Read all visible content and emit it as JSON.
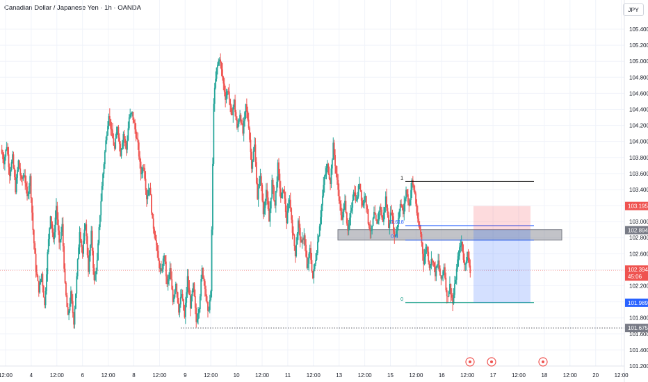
{
  "header": {
    "symbol_title": "Canadian Dollar / Japanese Yen · 1h · OANDA",
    "currency_button": "JPY"
  },
  "colors": {
    "up": "#26a69a",
    "down": "#ef5350",
    "grid": "#f0f3fa",
    "axis_text": "#131722"
  },
  "chart_data": {
    "type": "candlestick",
    "ylim": [
      101.2,
      105.5
    ],
    "y_ticks": [
      101.2,
      101.4,
      101.6,
      101.8,
      102.0,
      102.2,
      102.4,
      102.6,
      102.8,
      103.0,
      103.2,
      103.4,
      103.6,
      103.8,
      104.0,
      104.2,
      104.4,
      104.6,
      104.8,
      105.0,
      105.2,
      105.4
    ],
    "y_tick_labels": [
      "101.200",
      "101.400",
      "101.600",
      "101.800",
      "102.000",
      "102.200",
      "102.400",
      "102.600",
      "102.800",
      "103.000",
      "103.200",
      "103.400",
      "103.600",
      "103.800",
      "104.000",
      "104.200",
      "104.400",
      "104.600",
      "104.800",
      "105.000",
      "105.200",
      "105.400"
    ],
    "x_tick_labels": [
      "12:00",
      "4",
      "12:00",
      "6",
      "12:00",
      "8",
      "12:00",
      "9",
      "12:00",
      "10",
      "12:00",
      "11",
      "12:00",
      "13",
      "12:00",
      "15",
      "12:00",
      "16",
      "12:00",
      "17",
      "12:00",
      "18",
      "12:00",
      "20",
      "12:00"
    ],
    "price_path": [
      103.9,
      103.75,
      103.95,
      103.6,
      103.8,
      103.4,
      103.75,
      103.5,
      103.6,
      103.3,
      103.55,
      102.9,
      102.4,
      102.15,
      102.35,
      101.95,
      102.6,
      103.1,
      102.75,
      103.2,
      102.7,
      102.95,
      102.2,
      101.8,
      102.1,
      101.75,
      102.3,
      102.9,
      102.6,
      103.0,
      102.4,
      102.85,
      102.25,
      102.5,
      103.1,
      103.6,
      104.0,
      104.35,
      104.1,
      103.9,
      104.2,
      103.85,
      104.1,
      103.9,
      104.3,
      104.35,
      104.15,
      103.95,
      103.6,
      103.7,
      103.3,
      103.45,
      103.0,
      102.8,
      102.5,
      102.35,
      102.6,
      102.2,
      102.4,
      102.0,
      102.25,
      101.9,
      102.1,
      101.8,
      102.3,
      101.95,
      102.2,
      101.75,
      101.95,
      102.4,
      102.2,
      101.85,
      102.1,
      104.5,
      104.9,
      105.05,
      104.8,
      104.55,
      104.65,
      104.3,
      104.5,
      104.15,
      104.35,
      104.1,
      104.45,
      104.2,
      103.7,
      103.95,
      103.3,
      103.6,
      103.1,
      103.4,
      103.0,
      103.5,
      103.2,
      103.7,
      103.3,
      103.4,
      103.0,
      103.3,
      102.9,
      102.6,
      103.0,
      102.7,
      102.85,
      102.4,
      102.65,
      102.3,
      102.55,
      102.85,
      103.2,
      103.55,
      103.7,
      103.5,
      103.95,
      103.6,
      103.3,
      103.0,
      103.3,
      102.85,
      103.1,
      103.4,
      103.25,
      103.5,
      103.2,
      103.35,
      103.0,
      102.85,
      103.1,
      102.95,
      103.2,
      103.0,
      103.3,
      102.95,
      103.15,
      102.8,
      102.95,
      103.25,
      103.1,
      103.4,
      103.2,
      103.5,
      103.35,
      103.0,
      102.85,
      102.5,
      102.7,
      102.45,
      102.55,
      102.35,
      102.5,
      102.25,
      102.45,
      102.05,
      102.2,
      101.98,
      102.3,
      102.6,
      102.75,
      102.45,
      102.6,
      102.39
    ],
    "current_price": "102.394",
    "countdown": "45:06",
    "price_tags": [
      {
        "label": "103.195",
        "value": 103.195,
        "color": "#ef5350"
      },
      {
        "label": "102.894",
        "value": 102.894,
        "color": "#787b86"
      },
      {
        "label": "101.989",
        "value": 101.989,
        "color": "#2962ff"
      },
      {
        "label": "101.675",
        "value": 101.675,
        "color": "#787b86"
      }
    ],
    "fib_levels": [
      {
        "label": "1",
        "value": 103.5,
        "color": "#000000"
      },
      {
        "label": "0.618",
        "value": 102.95,
        "color": "#2962ff"
      },
      {
        "label": "0.5",
        "value": 102.77,
        "color": "#2962ff"
      },
      {
        "label": "0",
        "value": 101.99,
        "color": "#089981"
      }
    ],
    "zone": {
      "low": 102.77,
      "high": 102.9
    },
    "position": {
      "stop": 103.195,
      "entry": 102.9,
      "target": 101.989
    },
    "support_line": 101.675
  }
}
